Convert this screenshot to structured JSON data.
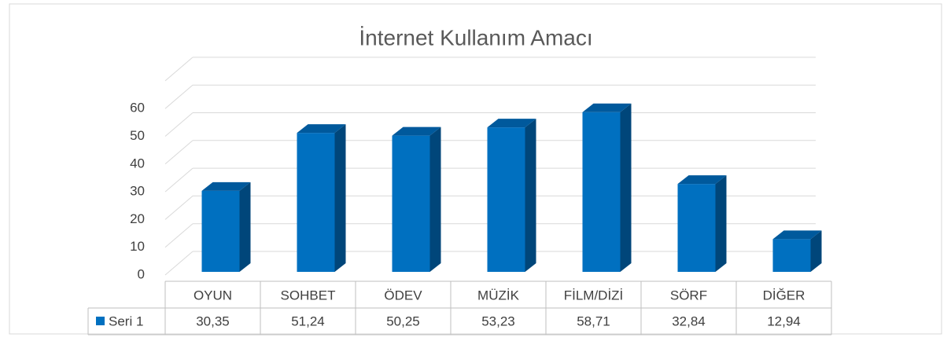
{
  "chart_data": {
    "type": "bar3d",
    "title": "İnternet Kullanım Amacı",
    "categories": [
      "OYUN",
      "SOHBET",
      "ÖDEV",
      "MÜZİK",
      "FİLM/DİZİ",
      "SÖRF",
      "DİĞER"
    ],
    "series": [
      {
        "name": "Seri 1",
        "color": "#0070c0",
        "values": [
          30.35,
          51.24,
          50.25,
          53.23,
          58.71,
          32.84,
          12.94
        ],
        "value_labels": [
          "30,35",
          "51,24",
          "50,25",
          "53,23",
          "58,71",
          "32,84",
          "12,94"
        ]
      }
    ],
    "ylim": [
      0,
      70
    ],
    "yticks": [
      0,
      10,
      20,
      30,
      40,
      50,
      60
    ],
    "grid": true
  }
}
